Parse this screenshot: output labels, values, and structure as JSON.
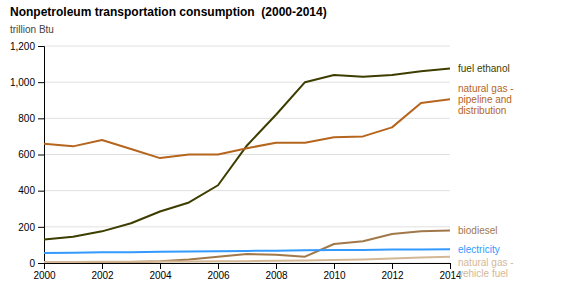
{
  "chart_data": {
    "type": "line",
    "title": "Nonpetroleum transportation consumption  (2000-2014)",
    "subtitle": "trillion Btu",
    "x": [
      2000,
      2001,
      2002,
      2003,
      2004,
      2005,
      2006,
      2007,
      2008,
      2009,
      2010,
      2011,
      2012,
      2013,
      2014
    ],
    "series": [
      {
        "name": "fuel ethanol",
        "color": "#3d3d00",
        "values": [
          130,
          145,
          175,
          220,
          285,
          335,
          430,
          650,
          820,
          1000,
          1040,
          1030,
          1040,
          1060,
          1075
        ]
      },
      {
        "name": "natural gas -\npipeline and\ndistribution",
        "color": "#b5651d",
        "values": [
          660,
          645,
          680,
          630,
          580,
          600,
          600,
          635,
          665,
          665,
          695,
          700,
          750,
          885,
          905
        ]
      },
      {
        "name": "biodiesel",
        "color": "#a0784a",
        "values": [
          2,
          3,
          5,
          6,
          10,
          20,
          35,
          50,
          45,
          35,
          105,
          120,
          160,
          175,
          180
        ]
      },
      {
        "name": "electricity",
        "color": "#3399ff",
        "values": [
          55,
          57,
          60,
          60,
          62,
          63,
          65,
          67,
          68,
          70,
          72,
          72,
          74,
          75,
          76
        ]
      },
      {
        "name": "natural gas -\nvehicle fuel",
        "color": "#d4b896",
        "values": [
          5,
          6,
          7,
          7,
          8,
          8,
          9,
          10,
          12,
          14,
          16,
          20,
          25,
          30,
          35
        ]
      }
    ],
    "xlim": [
      2000,
      2014
    ],
    "xticks": [
      2000,
      2002,
      2004,
      2006,
      2008,
      2010,
      2012,
      2014
    ],
    "ylim": [
      0,
      1200
    ],
    "yticks": [
      0,
      200,
      400,
      600,
      800,
      {
        "value": 1000,
        "label": "1,000"
      },
      {
        "value": 1200,
        "label": "1,200"
      }
    ],
    "grid": true,
    "legend": "right"
  }
}
